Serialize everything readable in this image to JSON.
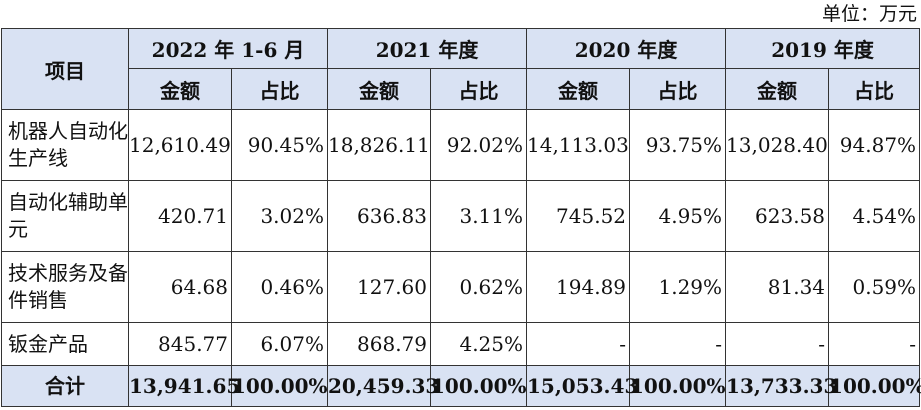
{
  "unit_label": "单位：万元",
  "headers": {
    "item": "项目",
    "periods": [
      "2022 年 1-6 月",
      "2021 年度",
      "2020 年度",
      "2019 年度"
    ],
    "sub": [
      "金额",
      "占比",
      "金额",
      "占比",
      "金额",
      "占比",
      "金额",
      "占比"
    ]
  },
  "rows": [
    {
      "label": "机器人自动化生产线",
      "cells": [
        "12,610.49",
        "90.45%",
        "18,826.11",
        "92.02%",
        "14,113.03",
        "93.75%",
        "13,028.40",
        "94.87%"
      ]
    },
    {
      "label": "自动化辅助单元",
      "cells": [
        "420.71",
        "3.02%",
        "636.83",
        "3.11%",
        "745.52",
        "4.95%",
        "623.58",
        "4.54%"
      ]
    },
    {
      "label": "技术服务及备件销售",
      "cells": [
        "64.68",
        "0.46%",
        "127.60",
        "0.62%",
        "194.89",
        "1.29%",
        "81.34",
        "0.59%"
      ]
    },
    {
      "label": "钣金产品",
      "cells": [
        "845.77",
        "6.07%",
        "868.79",
        "4.25%",
        "-",
        "-",
        "-",
        "-"
      ]
    }
  ],
  "total": {
    "label": "合计",
    "cells": [
      "13,941.65",
      "100.00%",
      "20,459.33",
      "100.00%",
      "15,053.43",
      "100.00%",
      "13,733.33",
      "100.00%"
    ]
  }
}
